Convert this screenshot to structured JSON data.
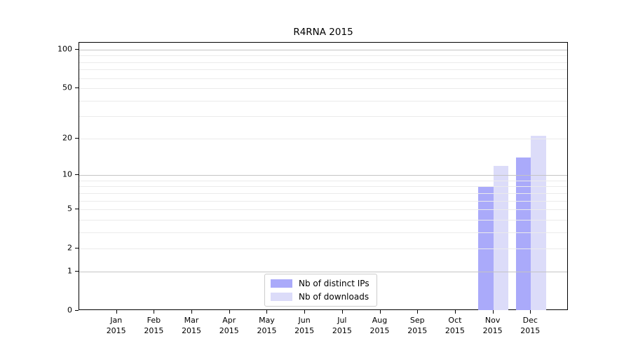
{
  "title": "R4RNA 2015",
  "chart_data": {
    "type": "bar",
    "title": "R4RNA 2015",
    "categories": [
      "Jan",
      "Feb",
      "Mar",
      "Apr",
      "May",
      "Jun",
      "Jul",
      "Aug",
      "Sep",
      "Oct",
      "Nov",
      "Dec"
    ],
    "year": "2015",
    "series": [
      {
        "name": "Nb of distinct IPs",
        "color": "#aaaafa",
        "values": [
          0,
          0,
          0,
          0,
          0,
          0,
          0,
          0,
          0,
          0,
          8,
          14
        ]
      },
      {
        "name": "Nb of downloads",
        "color": "#dcdcf9",
        "values": [
          0,
          0,
          0,
          0,
          0,
          0,
          0,
          0,
          0,
          0,
          12,
          21
        ]
      }
    ],
    "xlabel": "",
    "ylabel": "",
    "yscale": "log1p",
    "ylim": [
      0,
      113
    ],
    "y_tick_labels": [
      0,
      1,
      2,
      5,
      10,
      20,
      50,
      100
    ],
    "major_gridlines": [
      1,
      10,
      100
    ],
    "minor_gridlines": [
      2,
      3,
      4,
      5,
      6,
      7,
      8,
      9,
      20,
      30,
      40,
      50,
      60,
      70,
      80,
      90
    ],
    "grid": true,
    "legend_position": "lower center"
  },
  "colors": {
    "frame": "#000000",
    "major_grid": "#c4c4c4",
    "minor_grid": "#ebebeb",
    "text": "#000000",
    "legend_border": "#cccccc",
    "background": "#ffffff"
  }
}
